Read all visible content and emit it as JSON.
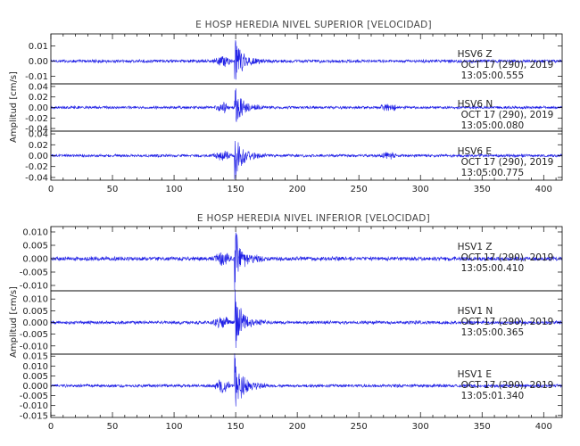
{
  "chart_data": [
    {
      "type": "line",
      "title": "E HOSP HEREDIA NIVEL SUPERIOR [VELOCIDAD]",
      "ylabel": "Amplitud [cm/s]",
      "xlim": [
        0,
        415
      ],
      "xticks": [
        0,
        50,
        100,
        150,
        200,
        250,
        300,
        350,
        400
      ],
      "panels": [
        {
          "ylim": [
            -0.015,
            0.018
          ],
          "yticks": [
            -0.01,
            0.0,
            0.01
          ],
          "ytick_labels": [
            "-0.01",
            "0.00",
            "0.01"
          ],
          "station": "HSV6",
          "component": "Z",
          "date": "OCT 17 (290), 2019",
          "time": "13:05:00.555",
          "peak_amplitude": 0.017,
          "noise": 0.0012
        },
        {
          "ylim": [
            -0.045,
            0.045
          ],
          "yticks": [
            -0.04,
            -0.02,
            0.0,
            0.02,
            0.04
          ],
          "ytick_labels": [
            "-0.04",
            "-0.02",
            "0.00",
            "0.02",
            "0.04"
          ],
          "station": "HSV6",
          "component": "N",
          "date": "OCT 17 (290), 2019",
          "time": "13:05:00.080",
          "peak_amplitude": 0.04,
          "noise": 0.003
        },
        {
          "ylim": [
            -0.045,
            0.045
          ],
          "yticks": [
            -0.04,
            -0.02,
            0.0,
            0.02,
            0.04
          ],
          "ytick_labels": [
            "-0.04",
            "-0.02",
            "0.00",
            "0.02",
            "0.04"
          ],
          "station": "HSV6",
          "component": "E",
          "date": "OCT 17 (290), 2019",
          "time": "13:05:00.775",
          "peak_amplitude": 0.042,
          "noise": 0.003
        }
      ]
    },
    {
      "type": "line",
      "title": "E HOSP HEREDIA NIVEL INFERIOR [VELOCIDAD]",
      "ylabel": "Amplitud [cm/s]",
      "xlim": [
        0,
        415
      ],
      "xticks": [
        0,
        50,
        100,
        150,
        200,
        250,
        300,
        350,
        400
      ],
      "panels": [
        {
          "ylim": [
            -0.012,
            0.012
          ],
          "yticks": [
            -0.01,
            -0.005,
            0.0,
            0.005,
            0.01
          ],
          "ytick_labels": [
            "-0.010",
            "-0.005",
            "0.000",
            "0.005",
            "0.010"
          ],
          "station": "HSV1",
          "component": "Z",
          "date": "OCT 17 (290), 2019",
          "time": "13:05:00.410",
          "peak_amplitude": 0.011,
          "noise": 0.0009
        },
        {
          "ylim": [
            -0.0135,
            0.0135
          ],
          "yticks": [
            -0.01,
            -0.005,
            0.0,
            0.005,
            0.01
          ],
          "ytick_labels": [
            "-0.010",
            "-0.005",
            "0.000",
            "0.005",
            "0.010"
          ],
          "station": "HSV1",
          "component": "N",
          "date": "OCT 17 (290), 2019",
          "time": "13:05:00.365",
          "peak_amplitude": 0.0125,
          "noise": 0.0008
        },
        {
          "ylim": [
            -0.016,
            0.016
          ],
          "yticks": [
            -0.015,
            -0.01,
            -0.005,
            0.0,
            0.005,
            0.01,
            0.015
          ],
          "ytick_labels": [
            "-0.015",
            "-0.010",
            "-0.005",
            "0.000",
            "0.005",
            "0.010",
            "0.015"
          ],
          "station": "HSV1",
          "component": "E",
          "date": "OCT 17 (290), 2019",
          "time": "13:05:01.340",
          "peak_amplitude": 0.0155,
          "noise": 0.0009
        }
      ]
    }
  ],
  "colors": {
    "trace": "#1f1fe6",
    "axis": "#000000",
    "title": "#444444"
  }
}
